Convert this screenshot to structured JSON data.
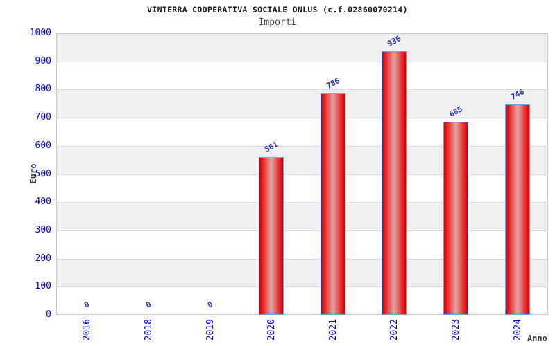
{
  "chart_data": {
    "type": "bar",
    "title": "VINTERRA COOPERATIVA SOCIALE ONLUS (c.f.02860070214)",
    "subtitle": "Importi",
    "xlabel": "Anno",
    "ylabel": "Euro",
    "categories": [
      "2016",
      "2018",
      "2019",
      "2020",
      "2021",
      "2022",
      "2023",
      "2024"
    ],
    "values": [
      0,
      0,
      0,
      561,
      786,
      936,
      685,
      746
    ],
    "ylim": [
      0,
      1000
    ],
    "ytick_step": 100,
    "grid": "horizontal-only",
    "legend": "none",
    "band_style": "alternating horizontal bands, gray on odd bands from top",
    "colors": {
      "bar_edge": "#ee1414",
      "bar_center": "#e0a6a6",
      "bar_border": "#55aaff",
      "tick_label": "#0000dd",
      "value_label": "#2233bb",
      "band_gray": "#f0f0f0",
      "gridline": "#d9d9d9",
      "axis_label": "#3a3a3a",
      "title": "#1a1a1a",
      "subtitle": "#444444"
    }
  }
}
